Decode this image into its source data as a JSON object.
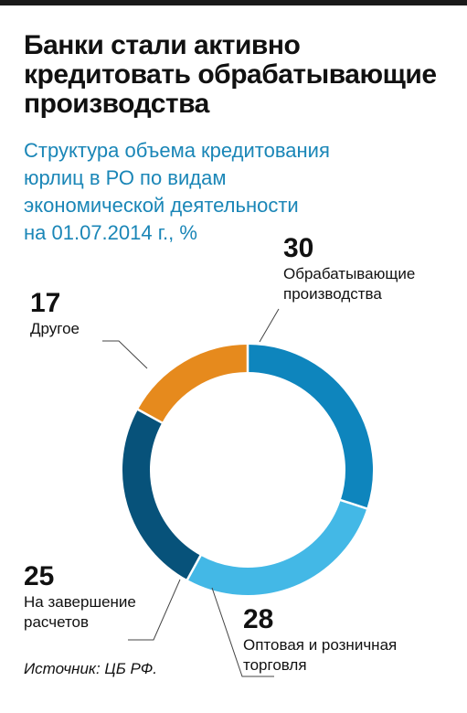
{
  "chart_data": {
    "type": "pie",
    "title": "Банки стали активно\nкредитовать обрабатывающие\nпроизводства",
    "subtitle": "Структура объема кредитования\nюрлиц в РО по видам\nэкономической деятельности\nна 01.07.2014 г., %",
    "series": [
      {
        "name": "Обрабатывающие\nпроизводства",
        "value": 30,
        "color": "#0e85bd"
      },
      {
        "name": "Оптовая и розничная\nторговля",
        "value": 28,
        "color": "#43b8e6"
      },
      {
        "name": "На завершение\nрасчетов",
        "value": 25,
        "color": "#07527a"
      },
      {
        "name": "Другое",
        "value": 17,
        "color": "#e68a1d"
      }
    ]
  },
  "source": "Источник: ЦБ РФ."
}
